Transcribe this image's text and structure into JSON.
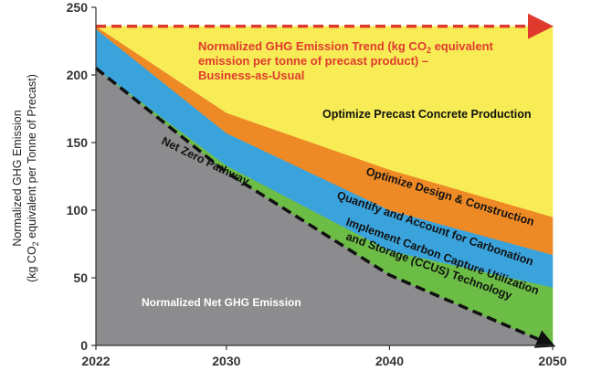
{
  "chart_data": {
    "type": "area",
    "title": "",
    "xlabel": "",
    "ylabel_line1": "Normalized GHG Emission",
    "ylabel_line2_pre": "(kg CO",
    "ylabel_line2_sub": "2",
    "ylabel_line2_post": " equivalent per Tonne of Precast)",
    "x": [
      2022,
      2030,
      2040,
      2050
    ],
    "xticks": [
      "2022",
      "2030",
      "2040",
      "2050"
    ],
    "ylim": [
      0,
      250
    ],
    "yticks": [
      "0",
      "50",
      "100",
      "150",
      "200",
      "250"
    ],
    "ytick_values": [
      0,
      50,
      100,
      150,
      200,
      250
    ],
    "series": [
      {
        "name": "Normalized Net GHG Emission",
        "color": "#8c8c8e",
        "values": [
          205,
          128,
          52,
          0
        ]
      },
      {
        "name": "Implement Carbon Capture Utilization and Storage (CCUS) Technology",
        "color": "#6cbd45",
        "values": [
          205,
          133,
          70,
          43
        ]
      },
      {
        "name": "Quantify and Account for Carbonation",
        "color": "#3ba3dc",
        "values": [
          234,
          157,
          100,
          67
        ]
      },
      {
        "name": "Optimize Design & Construction",
        "color": "#ee8a26",
        "values": [
          236,
          172,
          130,
          95
        ]
      },
      {
        "name": "Optimize Precast Concrete Production",
        "color": "#f7ec55",
        "values": [
          236,
          236,
          236,
          236
        ]
      }
    ],
    "trend": {
      "name": "Business-as-Usual",
      "color": "#e03a2f",
      "values": [
        236,
        236,
        236,
        236
      ],
      "label_line1_pre": "Normalized GHG Emission Trend (kg CO",
      "label_line1_sub": "2",
      "label_line1_post": " equivalent",
      "label_line2": "emission per tonne of precast product) –",
      "label_line3": "Business-as-Usual"
    },
    "net_zero": {
      "name": "Net Zero Pathway",
      "color": "#111111",
      "values": [
        205,
        128,
        52,
        0
      ]
    },
    "annotations": {
      "optimize_precast": "Optimize Precast Concrete Production",
      "optimize_design": "Optimize Design & Construction",
      "quantify": "Quantify and Account for Carbonation",
      "ccus_line1": "Implement Carbon Capture Utilization",
      "ccus_line2": "and Storage (CCUS) Technology",
      "net_zero_label": "Net Zero Pathway",
      "net_emission_label": "Normalized Net GHG Emission"
    }
  }
}
